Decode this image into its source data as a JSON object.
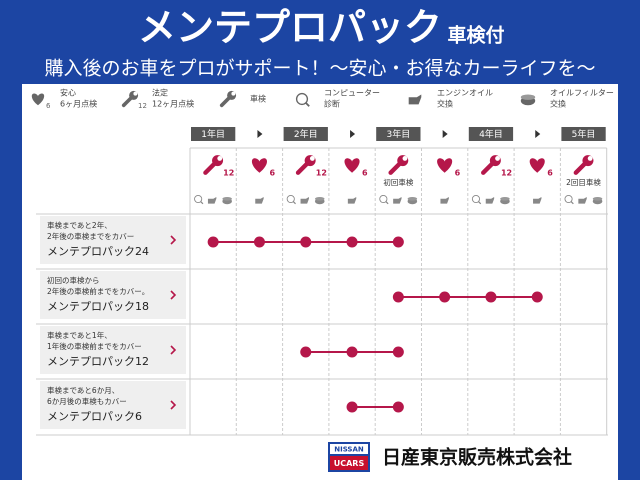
{
  "header": {
    "title": "メンテプロパック",
    "title_suffix": "車検付",
    "subtitle": "購入後のお車をプロがサポート！〜安心・お得なカーライフを〜"
  },
  "legend": [
    {
      "icon": "heart",
      "badge": "6",
      "label": [
        "安心",
        "6ヶ月点検"
      ]
    },
    {
      "icon": "wrench",
      "badge": "12",
      "label": [
        "法定",
        "12ヶ月点検"
      ]
    },
    {
      "icon": "wrench",
      "label": [
        "車検"
      ]
    },
    {
      "icon": "diag",
      "label": [
        "コンピューター",
        "診断"
      ]
    },
    {
      "icon": "oil",
      "label": [
        "エンジンオイル",
        "交換"
      ]
    },
    {
      "icon": "filter",
      "label": [
        "オイルフィルター",
        "交換"
      ]
    }
  ],
  "years": [
    "1年目",
    "2年目",
    "3年目",
    "4年目",
    "5年目"
  ],
  "columns": [
    {
      "icon": "wrench",
      "badge": "12"
    },
    {
      "icon": "heart",
      "badge": "6"
    },
    {
      "icon": "wrench",
      "badge": "12"
    },
    {
      "icon": "heart",
      "badge": "6"
    },
    {
      "icon": "wrench",
      "note": "初回車検"
    },
    {
      "icon": "heart",
      "badge": "6"
    },
    {
      "icon": "wrench",
      "badge": "12"
    },
    {
      "icon": "heart",
      "badge": "6"
    },
    {
      "icon": "wrench",
      "note": "2回目車検"
    }
  ],
  "packages": [
    {
      "lines": [
        "車検まであと2年、",
        "2年後の車検までをカバー"
      ],
      "name": "メンテプロパック24"
    },
    {
      "lines": [
        "初回の車検から",
        "2年後の車検前までをカバー。"
      ],
      "name": "メンテプロパック18"
    },
    {
      "lines": [
        "車検まであと1年、",
        "1年後の車検前までをカバー"
      ],
      "name": "メンテプロパック12"
    },
    {
      "lines": [
        "車検まであと6か月、",
        "6か月後の車検もカバー"
      ],
      "name": "メンテプロパック6"
    }
  ],
  "footer": {
    "logo_top": "NISSAN",
    "logo_bottom": "UCARS",
    "company": "日産東京販売株式会社"
  }
}
